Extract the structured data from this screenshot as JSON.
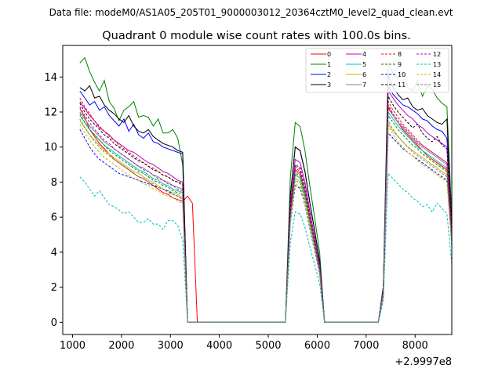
{
  "suptitle": "Data file: modeM0/AS1A05_205T01_9000003012_20364cztM0_level2_quad_clean.evt",
  "chart_data": {
    "type": "line",
    "title": "Quadrant 0 module wise count rates with 100.0s bins.",
    "xlabel": "",
    "ylabel": "",
    "x_offset_label": "+2.9997e8",
    "xlim": [
      800,
      8750
    ],
    "ylim": [
      -0.7,
      15.8
    ],
    "xticks": [
      1000,
      2000,
      3000,
      4000,
      5000,
      6000,
      7000,
      8000
    ],
    "yticks": [
      0,
      2,
      4,
      6,
      8,
      10,
      12,
      14
    ],
    "legend_position": "upper-right",
    "series": [
      {
        "name": "0",
        "color": "#ff0000",
        "dash": false,
        "seg1": [
          12.2,
          11.7,
          11.0,
          10.6,
          10.2,
          9.9,
          9.6,
          9.3,
          9.1,
          8.9,
          8.7,
          8.5,
          8.3,
          8.2,
          8.0,
          7.8,
          7.6,
          7.4,
          7.3,
          7.1,
          7.0,
          6.9,
          7.2,
          6.8
        ],
        "peak2": 8.7,
        "seg3": [
          12.3,
          11.8,
          11.4,
          11.0,
          10.7,
          10.4,
          10.1,
          9.8,
          9.5,
          9.3,
          9.1,
          8.9,
          8.7,
          5.0
        ]
      },
      {
        "name": "1",
        "color": "#008000",
        "dash": false,
        "seg1": [
          14.8,
          15.1,
          14.3,
          13.7,
          13.2,
          13.8,
          12.6,
          12.2,
          11.5,
          12.1,
          12.3,
          12.6,
          11.7,
          11.8,
          11.7,
          11.2,
          11.6,
          10.8,
          10.8,
          11.0,
          10.5,
          9.0,
          0.0,
          0.0
        ],
        "peak2": 11.4,
        "seg3": [
          14.8,
          14.2,
          13.9,
          14.3,
          13.4,
          13.2,
          13.8,
          12.9,
          13.5,
          13.3,
          12.8,
          12.5,
          12.3,
          6.0
        ]
      },
      {
        "name": "2",
        "color": "#0000ff",
        "dash": false,
        "seg1": [
          13.2,
          12.8,
          12.4,
          12.6,
          12.1,
          12.3,
          11.8,
          11.5,
          11.2,
          11.6,
          10.9,
          11.3,
          10.7,
          10.5,
          10.8,
          10.3,
          10.2,
          10.0,
          9.9,
          9.8,
          9.7,
          9.6,
          0.0,
          0.0
        ],
        "peak2": 10.0,
        "seg3": [
          13.5,
          13.0,
          12.7,
          12.4,
          12.3,
          12.1,
          11.9,
          11.6,
          11.5,
          11.2,
          11.0,
          10.9,
          10.5,
          5.5
        ]
      },
      {
        "name": "3",
        "color": "#000000",
        "dash": false,
        "seg1": [
          13.4,
          13.2,
          13.5,
          12.8,
          12.9,
          12.4,
          12.1,
          11.9,
          11.6,
          11.4,
          11.8,
          11.2,
          10.9,
          10.8,
          11.0,
          10.6,
          10.4,
          10.2,
          10.1,
          10.0,
          9.8,
          9.7,
          0.0,
          0.0
        ],
        "peak2": 10.0,
        "seg3": [
          14.1,
          13.4,
          13.0,
          12.7,
          12.8,
          12.3,
          12.1,
          12.2,
          11.8,
          11.6,
          11.4,
          11.3,
          11.6,
          5.2
        ]
      },
      {
        "name": "4",
        "color": "#bf00bf",
        "dash": false,
        "seg1": [
          12.6,
          12.2,
          11.8,
          11.5,
          11.1,
          10.9,
          10.7,
          10.4,
          10.2,
          10.0,
          9.8,
          9.7,
          9.5,
          9.3,
          9.1,
          9.0,
          8.8,
          8.6,
          8.5,
          8.3,
          8.1,
          8.0,
          0.0,
          0.0
        ],
        "peak2": 9.3,
        "seg3": [
          13.2,
          12.8,
          12.4,
          12.1,
          11.8,
          11.6,
          11.3,
          11.1,
          10.8,
          10.6,
          10.4,
          10.2,
          10.0,
          5.2
        ]
      },
      {
        "name": "5",
        "color": "#00bfbf",
        "dash": false,
        "seg1": [
          11.8,
          11.4,
          11.0,
          10.7,
          10.4,
          10.1,
          9.9,
          9.7,
          9.5,
          9.3,
          9.1,
          8.9,
          8.7,
          8.6,
          8.4,
          8.2,
          8.1,
          7.9,
          7.8,
          7.6,
          7.5,
          7.4,
          0.0,
          0.0
        ],
        "peak2": 8.4,
        "seg3": [
          12.0,
          11.6,
          11.2,
          10.9,
          10.6,
          10.3,
          10.0,
          9.8,
          9.6,
          9.4,
          9.2,
          9.0,
          8.8,
          4.6
        ]
      },
      {
        "name": "6",
        "color": "#bfbf00",
        "dash": false,
        "seg1": [
          11.5,
          11.1,
          10.7,
          10.4,
          10.1,
          9.8,
          9.6,
          9.4,
          9.2,
          9.0,
          8.8,
          8.6,
          8.5,
          8.3,
          8.1,
          8.0,
          7.8,
          7.6,
          7.5,
          7.4,
          7.3,
          7.1,
          0.0,
          0.0
        ],
        "peak2": 8.2,
        "seg3": [
          11.3,
          10.9,
          10.6,
          10.3,
          10.0,
          9.8,
          9.6,
          9.4,
          9.2,
          9.0,
          8.8,
          8.6,
          8.4,
          4.5
        ]
      },
      {
        "name": "7",
        "color": "#7f7f7f",
        "dash": false,
        "seg1": [
          12.0,
          11.6,
          11.2,
          10.9,
          10.6,
          10.3,
          10.1,
          9.9,
          9.7,
          9.5,
          9.3,
          9.1,
          8.9,
          8.8,
          8.6,
          8.4,
          8.3,
          8.1,
          8.0,
          7.8,
          7.7,
          7.6,
          0.0,
          0.0
        ],
        "peak2": 8.6,
        "seg3": [
          12.2,
          11.8,
          11.4,
          11.1,
          10.8,
          10.5,
          10.2,
          10.0,
          9.8,
          9.6,
          9.4,
          9.2,
          9.0,
          4.8
        ]
      },
      {
        "name": "8",
        "color": "#ff0000",
        "dash": true,
        "seg1": [
          12.8,
          12.3,
          11.9,
          11.5,
          11.2,
          10.9,
          10.6,
          10.4,
          10.1,
          9.9,
          9.7,
          9.5,
          9.3,
          9.1,
          8.9,
          8.8,
          8.6,
          8.4,
          8.3,
          8.1,
          8.0,
          7.8,
          0.0,
          0.0
        ],
        "peak2": 8.8,
        "seg3": [
          12.6,
          12.1,
          11.7,
          11.3,
          11.0,
          10.7,
          10.4,
          10.1,
          9.9,
          9.7,
          9.5,
          9.3,
          9.1,
          4.9
        ]
      },
      {
        "name": "9",
        "color": "#008000",
        "dash": true,
        "seg1": [
          11.9,
          11.4,
          11.0,
          10.7,
          10.4,
          10.1,
          9.8,
          9.6,
          9.4,
          9.2,
          9.0,
          8.8,
          8.6,
          8.5,
          8.3,
          8.1,
          8.0,
          7.8,
          7.7,
          7.5,
          7.4,
          7.3,
          0.0,
          0.0
        ],
        "peak2": 8.5,
        "seg3": [
          11.8,
          11.4,
          11.0,
          10.7,
          10.4,
          10.1,
          9.9,
          9.6,
          9.4,
          9.2,
          9.0,
          8.8,
          8.6,
          4.7
        ]
      },
      {
        "name": "10",
        "color": "#0000ff",
        "dash": true,
        "seg1": [
          11.0,
          10.5,
          10.0,
          9.6,
          9.3,
          9.1,
          8.9,
          8.7,
          8.5,
          8.4,
          8.3,
          8.2,
          8.1,
          8.0,
          7.9,
          7.8,
          7.7,
          7.6,
          7.5,
          7.3,
          7.2,
          7.0,
          0.0,
          0.0
        ],
        "peak2": 7.8,
        "seg3": [
          10.8,
          10.5,
          10.2,
          9.9,
          9.7,
          9.5,
          9.3,
          9.1,
          8.9,
          8.7,
          8.5,
          8.3,
          8.1,
          4.3
        ]
      },
      {
        "name": "11",
        "color": "#000000",
        "dash": true,
        "seg1": [
          12.5,
          12.0,
          11.6,
          11.3,
          11.0,
          10.7,
          10.5,
          10.2,
          10.0,
          9.8,
          9.6,
          9.4,
          9.2,
          9.1,
          8.9,
          8.7,
          8.6,
          8.4,
          8.3,
          8.1,
          8.0,
          7.9,
          0.0,
          0.0
        ],
        "peak2": 9.0,
        "seg3": [
          12.9,
          12.4,
          12.0,
          11.7,
          11.4,
          11.1,
          11.3,
          10.8,
          10.5,
          10.3,
          10.6,
          10.1,
          9.9,
          5.1
        ]
      },
      {
        "name": "12",
        "color": "#bf00bf",
        "dash": true,
        "seg1": [
          12.3,
          11.8,
          11.4,
          11.0,
          10.7,
          10.4,
          10.2,
          9.9,
          9.7,
          9.5,
          9.3,
          9.1,
          8.9,
          8.7,
          8.6,
          8.4,
          8.2,
          8.1,
          7.9,
          7.8,
          7.6,
          7.5,
          0.0,
          0.0
        ],
        "peak2": 8.9,
        "seg3": [
          12.4,
          11.9,
          11.5,
          11.2,
          10.9,
          10.6,
          10.3,
          10.1,
          9.9,
          9.7,
          9.5,
          9.3,
          9.1,
          4.8
        ]
      },
      {
        "name": "13",
        "color": "#00bfbf",
        "dash": true,
        "seg1": [
          8.3,
          8.0,
          7.6,
          7.2,
          7.5,
          7.1,
          6.7,
          6.6,
          6.4,
          6.2,
          6.3,
          6.0,
          5.7,
          5.7,
          5.9,
          5.6,
          5.6,
          5.3,
          5.8,
          5.8,
          5.5,
          4.7,
          0.0,
          0.0
        ],
        "peak2": 6.3,
        "seg3": [
          8.5,
          8.2,
          7.9,
          7.6,
          7.4,
          7.1,
          6.9,
          6.6,
          6.7,
          6.3,
          6.8,
          6.5,
          6.2,
          3.3
        ]
      },
      {
        "name": "14",
        "color": "#bfbf00",
        "dash": true,
        "seg1": [
          11.3,
          10.8,
          10.4,
          10.0,
          9.7,
          9.4,
          9.2,
          9.0,
          8.8,
          8.6,
          8.4,
          8.2,
          8.1,
          7.9,
          7.8,
          7.6,
          7.5,
          7.3,
          7.2,
          7.1,
          6.9,
          6.8,
          0.0,
          0.0
        ],
        "peak2": 7.9,
        "seg3": [
          11.2,
          10.7,
          10.3,
          10.0,
          9.7,
          9.5,
          9.2,
          9.0,
          8.8,
          8.6,
          8.4,
          8.2,
          8.0,
          4.4
        ]
      },
      {
        "name": "15",
        "color": "#7f7f7f",
        "dash": true,
        "seg1": [
          11.6,
          11.1,
          10.7,
          10.3,
          10.0,
          9.7,
          9.5,
          9.3,
          9.1,
          8.9,
          8.7,
          8.5,
          8.3,
          8.2,
          8.0,
          7.9,
          7.7,
          7.6,
          7.4,
          7.3,
          7.2,
          7.0,
          0.0,
          0.0
        ],
        "peak2": 8.1,
        "seg3": [
          11.5,
          11.0,
          10.6,
          10.3,
          10.0,
          9.7,
          9.5,
          9.3,
          9.1,
          8.9,
          8.7,
          8.5,
          8.3,
          4.5
        ]
      }
    ]
  }
}
